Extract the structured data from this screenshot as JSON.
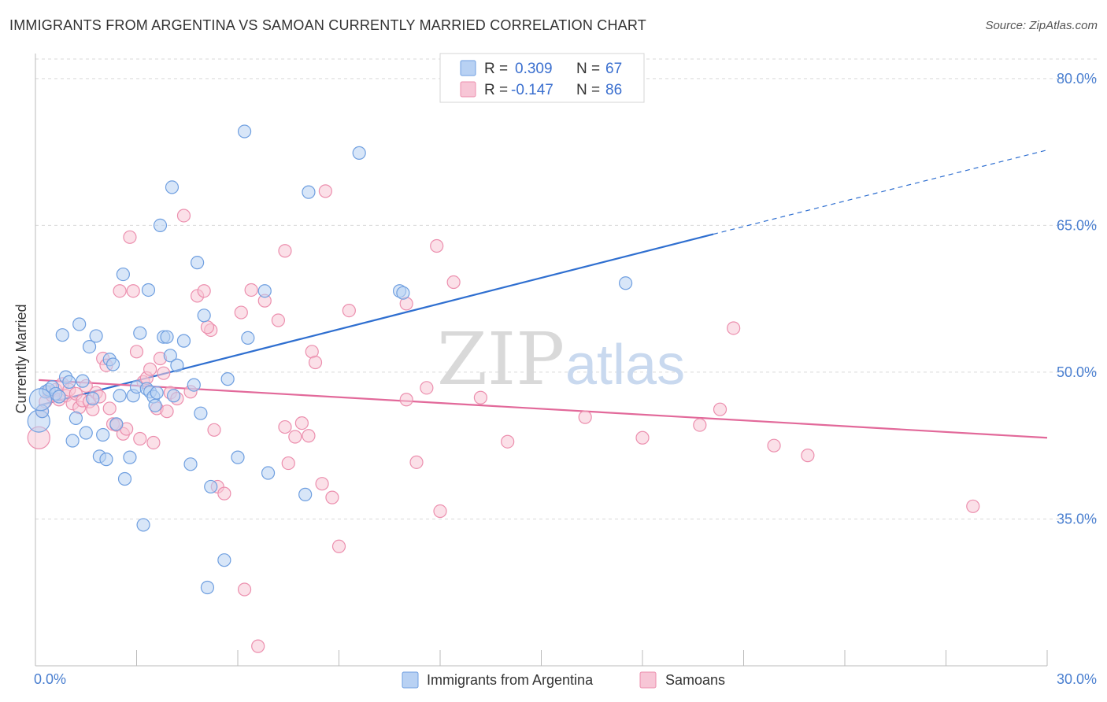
{
  "title": "IMMIGRANTS FROM ARGENTINA VS SAMOAN CURRENTLY MARRIED CORRELATION CHART",
  "source": "Source: ZipAtlas.com",
  "watermark": {
    "zip": "ZIP",
    "atlas": "atlas"
  },
  "colors": {
    "blue_fill": "#b8d1f3",
    "blue_stroke": "#6f9fe0",
    "blue_line": "#2f6fd0",
    "pink_fill": "#f7c6d6",
    "pink_stroke": "#ec8fae",
    "pink_line": "#e2699a",
    "grid": "#d9d9d9",
    "tick_text": "#4a7fd0"
  },
  "legend": {
    "rows": [
      {
        "r_label": "R =",
        "r_value": "0.309",
        "n_label": "N =",
        "n_value": "67"
      },
      {
        "r_label": "R =",
        "r_value": "-0.147",
        "n_label": "N =",
        "n_value": "86"
      }
    ]
  },
  "chart_data": {
    "type": "scatter",
    "title": "IMMIGRANTS FROM ARGENTINA VS SAMOAN CURRENTLY MARRIED CORRELATION CHART",
    "xlabel": "",
    "ylabel": "Currently Married",
    "xlim": [
      0,
      30
    ],
    "ylim": [
      20,
      82
    ],
    "x_tick_labels": [
      "0.0%",
      "30.0%"
    ],
    "x_tick_values": [
      0,
      30
    ],
    "y_tick_labels": [
      "35.0%",
      "50.0%",
      "65.0%",
      "80.0%"
    ],
    "y_tick_values": [
      35,
      50,
      65,
      80
    ],
    "grid": true,
    "legend_position": "top-center",
    "series": [
      {
        "name": "Immigrants from Argentina",
        "color": "#6f9fe0",
        "trend": {
          "x": [
            0.1,
            20.1
          ],
          "y": [
            46.6,
            64.1
          ],
          "dashed_extension": {
            "x": [
              20.1,
              30.0
            ],
            "y": [
              64.1,
              72.7
            ]
          }
        },
        "points": [
          [
            0.1,
            45.0
          ],
          [
            0.2,
            46.0
          ],
          [
            0.3,
            48.0
          ],
          [
            0.4,
            48.2
          ],
          [
            0.5,
            48.5
          ],
          [
            0.6,
            47.8
          ],
          [
            0.7,
            47.5
          ],
          [
            0.8,
            53.8
          ],
          [
            0.9,
            49.5
          ],
          [
            1.0,
            49.0
          ],
          [
            1.1,
            43.0
          ],
          [
            1.2,
            45.3
          ],
          [
            1.3,
            54.9
          ],
          [
            1.5,
            43.8
          ],
          [
            1.6,
            52.6
          ],
          [
            1.7,
            47.3
          ],
          [
            1.8,
            53.7
          ],
          [
            1.9,
            41.4
          ],
          [
            2.0,
            43.6
          ],
          [
            2.1,
            41.1
          ],
          [
            2.2,
            51.3
          ],
          [
            2.3,
            50.8
          ],
          [
            2.4,
            44.7
          ],
          [
            2.5,
            47.6
          ],
          [
            2.6,
            60.0
          ],
          [
            2.65,
            39.1
          ],
          [
            2.8,
            41.3
          ],
          [
            2.9,
            47.6
          ],
          [
            3.0,
            48.5
          ],
          [
            3.1,
            54.0
          ],
          [
            3.2,
            34.4
          ],
          [
            3.3,
            48.3
          ],
          [
            3.35,
            58.4
          ],
          [
            3.4,
            48.0
          ],
          [
            3.5,
            47.5
          ],
          [
            3.55,
            46.6
          ],
          [
            3.6,
            47.9
          ],
          [
            3.7,
            65.0
          ],
          [
            3.8,
            53.6
          ],
          [
            3.9,
            53.6
          ],
          [
            4.0,
            51.7
          ],
          [
            4.05,
            68.9
          ],
          [
            4.1,
            47.6
          ],
          [
            4.2,
            50.7
          ],
          [
            4.4,
            53.2
          ],
          [
            4.6,
            40.6
          ],
          [
            4.7,
            48.7
          ],
          [
            4.8,
            61.2
          ],
          [
            4.9,
            45.8
          ],
          [
            5.0,
            55.8
          ],
          [
            5.1,
            28.0
          ],
          [
            5.2,
            38.3
          ],
          [
            5.6,
            30.8
          ],
          [
            5.7,
            49.3
          ],
          [
            6.0,
            41.3
          ],
          [
            6.2,
            74.6
          ],
          [
            6.3,
            53.5
          ],
          [
            6.8,
            58.3
          ],
          [
            6.9,
            39.7
          ],
          [
            8.0,
            37.5
          ],
          [
            8.1,
            68.4
          ],
          [
            9.6,
            72.4
          ],
          [
            10.8,
            58.3
          ],
          [
            10.9,
            58.1
          ],
          [
            17.5,
            59.1
          ],
          [
            0.15,
            47.2
          ],
          [
            1.4,
            49.1
          ]
        ]
      },
      {
        "name": "Samoans",
        "color": "#ec8fae",
        "trend": {
          "x": [
            0.1,
            30.0
          ],
          "y": [
            49.2,
            43.3
          ]
        },
        "points": [
          [
            0.1,
            43.3
          ],
          [
            0.2,
            46.0
          ],
          [
            0.3,
            47.0
          ],
          [
            0.4,
            48.0
          ],
          [
            0.5,
            47.6
          ],
          [
            0.6,
            48.2
          ],
          [
            0.7,
            47.2
          ],
          [
            0.8,
            48.8
          ],
          [
            0.9,
            47.6
          ],
          [
            1.0,
            48.2
          ],
          [
            1.1,
            46.8
          ],
          [
            1.2,
            47.8
          ],
          [
            1.3,
            46.4
          ],
          [
            1.4,
            47.1
          ],
          [
            1.5,
            48.6
          ],
          [
            1.6,
            47.0
          ],
          [
            1.7,
            46.2
          ],
          [
            1.8,
            47.9
          ],
          [
            1.9,
            47.5
          ],
          [
            2.0,
            51.4
          ],
          [
            2.1,
            50.7
          ],
          [
            2.2,
            46.3
          ],
          [
            2.3,
            44.7
          ],
          [
            2.4,
            44.6
          ],
          [
            2.5,
            58.3
          ],
          [
            2.6,
            43.7
          ],
          [
            2.7,
            44.2
          ],
          [
            2.8,
            63.8
          ],
          [
            2.9,
            58.3
          ],
          [
            3.0,
            52.1
          ],
          [
            3.1,
            43.2
          ],
          [
            3.2,
            49.0
          ],
          [
            3.3,
            49.4
          ],
          [
            3.4,
            50.3
          ],
          [
            3.5,
            42.8
          ],
          [
            3.6,
            46.3
          ],
          [
            3.7,
            51.4
          ],
          [
            3.8,
            49.9
          ],
          [
            3.9,
            46.0
          ],
          [
            4.0,
            47.9
          ],
          [
            4.2,
            47.3
          ],
          [
            4.4,
            66.0
          ],
          [
            4.6,
            48.0
          ],
          [
            4.8,
            57.8
          ],
          [
            5.0,
            58.3
          ],
          [
            5.2,
            54.3
          ],
          [
            5.3,
            44.1
          ],
          [
            5.4,
            38.3
          ],
          [
            5.6,
            37.6
          ],
          [
            6.1,
            56.1
          ],
          [
            6.2,
            27.8
          ],
          [
            6.4,
            58.4
          ],
          [
            6.8,
            57.3
          ],
          [
            7.2,
            55.3
          ],
          [
            7.4,
            44.4
          ],
          [
            7.5,
            40.7
          ],
          [
            7.7,
            43.4
          ],
          [
            7.9,
            44.8
          ],
          [
            8.1,
            43.5
          ],
          [
            8.2,
            52.1
          ],
          [
            8.3,
            51.0
          ],
          [
            8.5,
            38.6
          ],
          [
            8.8,
            37.2
          ],
          [
            9.0,
            32.2
          ],
          [
            9.3,
            56.3
          ],
          [
            6.6,
            22.0
          ],
          [
            11.0,
            47.2
          ],
          [
            11.3,
            40.8
          ],
          [
            11.6,
            48.4
          ],
          [
            11.9,
            62.9
          ],
          [
            11.0,
            57.0
          ],
          [
            12.0,
            35.8
          ],
          [
            12.4,
            59.2
          ],
          [
            13.2,
            47.4
          ],
          [
            14.0,
            42.9
          ],
          [
            16.3,
            45.4
          ],
          [
            18.0,
            43.3
          ],
          [
            19.7,
            44.6
          ],
          [
            20.3,
            46.2
          ],
          [
            20.7,
            54.5
          ],
          [
            21.9,
            42.5
          ],
          [
            22.9,
            41.5
          ],
          [
            27.8,
            36.3
          ],
          [
            7.4,
            62.4
          ],
          [
            5.1,
            54.6
          ],
          [
            8.6,
            68.5
          ]
        ]
      }
    ]
  },
  "bottom_legend": {
    "items": [
      {
        "label": "Immigrants from Argentina"
      },
      {
        "label": "Samoans"
      }
    ]
  }
}
